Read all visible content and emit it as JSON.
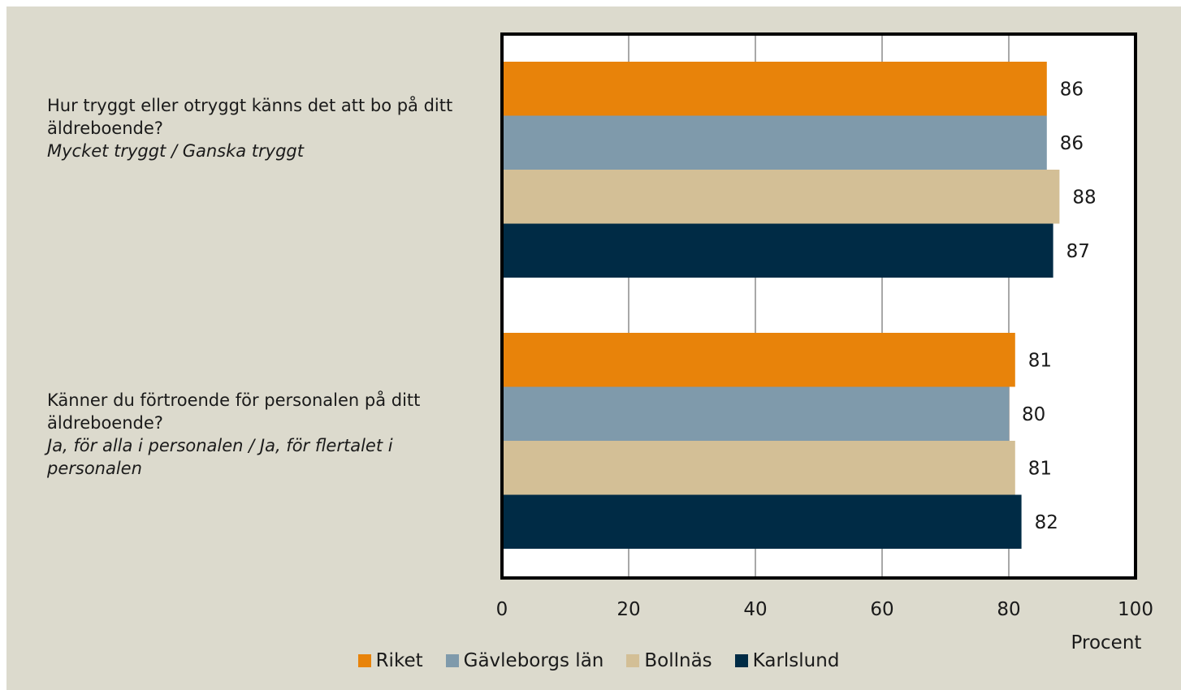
{
  "chart_data": {
    "type": "bar",
    "orientation": "horizontal",
    "categories": [
      {
        "question": "Hur tryggt eller otryggt känns det att bo på ditt äldreboende?",
        "answers": "Mycket tryggt / Ganska tryggt"
      },
      {
        "question": "Känner du förtroende för personalen på ditt äldreboende?",
        "answers": "Ja, för alla i personalen / Ja, för flertalet i personalen"
      }
    ],
    "series": [
      {
        "name": "Riket",
        "color": "#e8830a",
        "values": [
          86,
          81
        ]
      },
      {
        "name": "Gävleborgs län",
        "color": "#7f9aab",
        "values": [
          86,
          80
        ]
      },
      {
        "name": "Bollnäs",
        "color": "#d3bf96",
        "values": [
          88,
          81
        ]
      },
      {
        "name": "Karlslund",
        "color": "#002b45",
        "values": [
          87,
          82
        ]
      }
    ],
    "xlim": [
      0,
      100
    ],
    "xticks": [
      "0",
      "20",
      "40",
      "60",
      "80",
      "100"
    ],
    "xlabel": "Procent",
    "grid": true,
    "legend_position": "bottom"
  },
  "colors": {
    "background": "#dcdacd",
    "plot_area": "#ffffff",
    "gridline": "#8c8c8c",
    "frame": "#000000"
  }
}
